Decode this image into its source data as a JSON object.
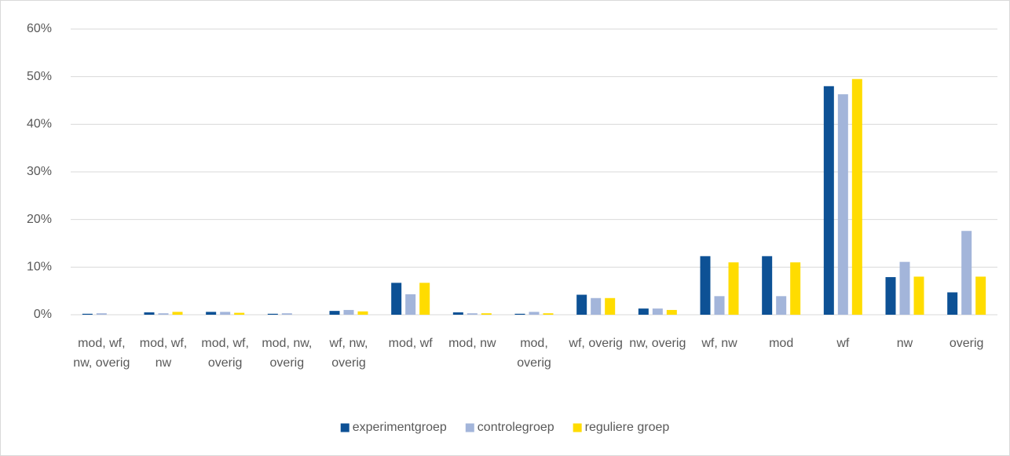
{
  "chart_data": {
    "type": "bar",
    "categories": [
      "mod, wf, nw, overig",
      "mod, wf, nw",
      "mod, wf, overig",
      "mod, nw, overig",
      "wf, nw, overig",
      "mod, wf",
      "mod, nw",
      "mod, overig",
      "wf, overig",
      "nw, overig",
      "wf, nw",
      "mod",
      "wf",
      "nw",
      "overig"
    ],
    "series": [
      {
        "name": "experimentgroep",
        "color": "#0d5195",
        "values": [
          0.2,
          0.5,
          0.6,
          0.2,
          0.8,
          6.7,
          0.5,
          0.2,
          4.2,
          1.3,
          12.3,
          12.3,
          48.0,
          7.9,
          4.7
        ]
      },
      {
        "name": "controlegroep",
        "color": "#a3b5da",
        "values": [
          0.3,
          0.3,
          0.6,
          0.3,
          1.0,
          4.3,
          0.3,
          0.6,
          3.5,
          1.3,
          3.9,
          3.9,
          46.3,
          11.1,
          17.6
        ]
      },
      {
        "name": "reguliere groep",
        "color": "#ffdc00",
        "values": [
          0,
          0.6,
          0.4,
          0,
          0.7,
          6.7,
          0.3,
          0.3,
          3.5,
          1.0,
          11.0,
          11.0,
          49.5,
          8.0,
          8.0
        ]
      }
    ],
    "ylim": [
      0,
      60
    ],
    "yticks": [
      {
        "value": 0,
        "label": "0%"
      },
      {
        "value": 10,
        "label": "10%"
      },
      {
        "value": 20,
        "label": "20%"
      },
      {
        "value": 30,
        "label": "30%"
      },
      {
        "value": 40,
        "label": "40%"
      },
      {
        "value": 50,
        "label": "50%"
      },
      {
        "value": 60,
        "label": "60%"
      }
    ],
    "grid": true,
    "legend": "bottom"
  }
}
